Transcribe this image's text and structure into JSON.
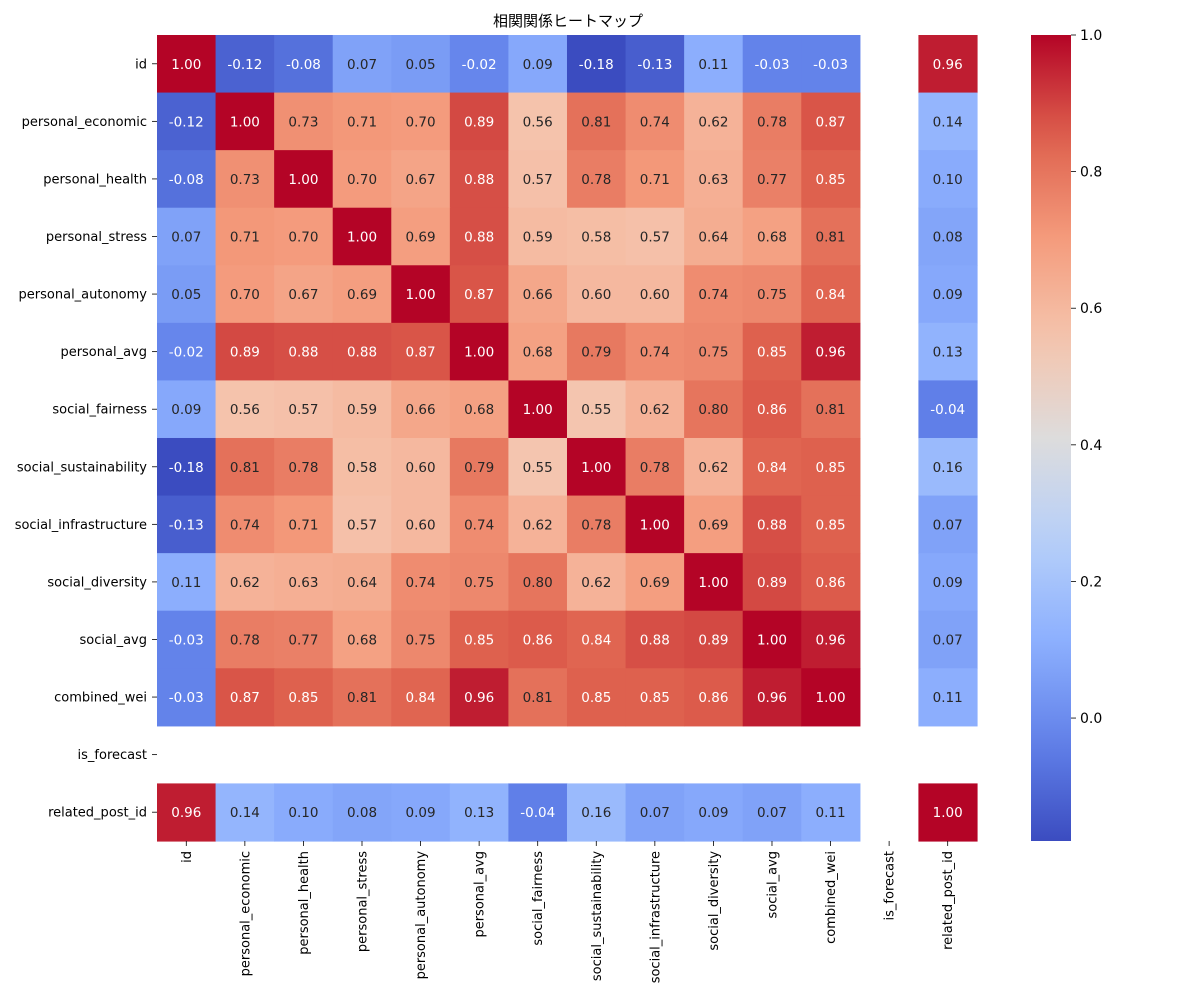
{
  "chart_data": {
    "type": "heatmap",
    "title": "相関関係ヒートマップ",
    "xlabel": "",
    "ylabel": "",
    "colormap": "coolwarm",
    "value_format": "2 decimals",
    "categories": [
      "id",
      "personal_economic",
      "personal_health",
      "personal_stress",
      "personal_autonomy",
      "personal_avg",
      "social_fairness",
      "social_sustainability",
      "social_infrastructure",
      "social_diversity",
      "social_avg",
      "combined_wei",
      "is_forecast",
      "related_post_id"
    ],
    "matrix": [
      [
        1.0,
        -0.12,
        -0.08,
        0.07,
        0.05,
        -0.02,
        0.09,
        -0.18,
        -0.13,
        0.11,
        -0.03,
        -0.03,
        null,
        0.96
      ],
      [
        -0.12,
        1.0,
        0.73,
        0.71,
        0.7,
        0.89,
        0.56,
        0.81,
        0.74,
        0.62,
        0.78,
        0.87,
        null,
        0.14
      ],
      [
        -0.08,
        0.73,
        1.0,
        0.7,
        0.67,
        0.88,
        0.57,
        0.78,
        0.71,
        0.63,
        0.77,
        0.85,
        null,
        0.1
      ],
      [
        0.07,
        0.71,
        0.7,
        1.0,
        0.69,
        0.88,
        0.59,
        0.58,
        0.57,
        0.64,
        0.68,
        0.81,
        null,
        0.08
      ],
      [
        0.05,
        0.7,
        0.67,
        0.69,
        1.0,
        0.87,
        0.66,
        0.6,
        0.6,
        0.74,
        0.75,
        0.84,
        null,
        0.09
      ],
      [
        -0.02,
        0.89,
        0.88,
        0.88,
        0.87,
        1.0,
        0.68,
        0.79,
        0.74,
        0.75,
        0.85,
        0.96,
        null,
        0.13
      ],
      [
        0.09,
        0.56,
        0.57,
        0.59,
        0.66,
        0.68,
        1.0,
        0.55,
        0.62,
        0.8,
        0.86,
        0.81,
        null,
        -0.04
      ],
      [
        -0.18,
        0.81,
        0.78,
        0.58,
        0.6,
        0.79,
        0.55,
        1.0,
        0.78,
        0.62,
        0.84,
        0.85,
        null,
        0.16
      ],
      [
        -0.13,
        0.74,
        0.71,
        0.57,
        0.6,
        0.74,
        0.62,
        0.78,
        1.0,
        0.69,
        0.88,
        0.85,
        null,
        0.07
      ],
      [
        0.11,
        0.62,
        0.63,
        0.64,
        0.74,
        0.75,
        0.8,
        0.62,
        0.69,
        1.0,
        0.89,
        0.86,
        null,
        0.09
      ],
      [
        -0.03,
        0.78,
        0.77,
        0.68,
        0.75,
        0.85,
        0.86,
        0.84,
        0.88,
        0.89,
        1.0,
        0.96,
        null,
        0.07
      ],
      [
        -0.03,
        0.87,
        0.85,
        0.81,
        0.84,
        0.96,
        0.81,
        0.85,
        0.85,
        0.86,
        0.96,
        1.0,
        null,
        0.11
      ],
      [
        null,
        null,
        null,
        null,
        null,
        null,
        null,
        null,
        null,
        null,
        null,
        null,
        null,
        null
      ],
      [
        0.96,
        0.14,
        0.1,
        0.08,
        0.09,
        0.13,
        -0.04,
        0.16,
        0.07,
        0.09,
        0.07,
        0.11,
        null,
        1.0
      ]
    ],
    "colorbar": {
      "vmin": -0.18,
      "vmax": 1.0,
      "ticks": [
        "0.0",
        "0.2",
        "0.4",
        "0.6",
        "0.8",
        "1.0"
      ]
    },
    "grid": false,
    "legend": "colorbar-right"
  }
}
